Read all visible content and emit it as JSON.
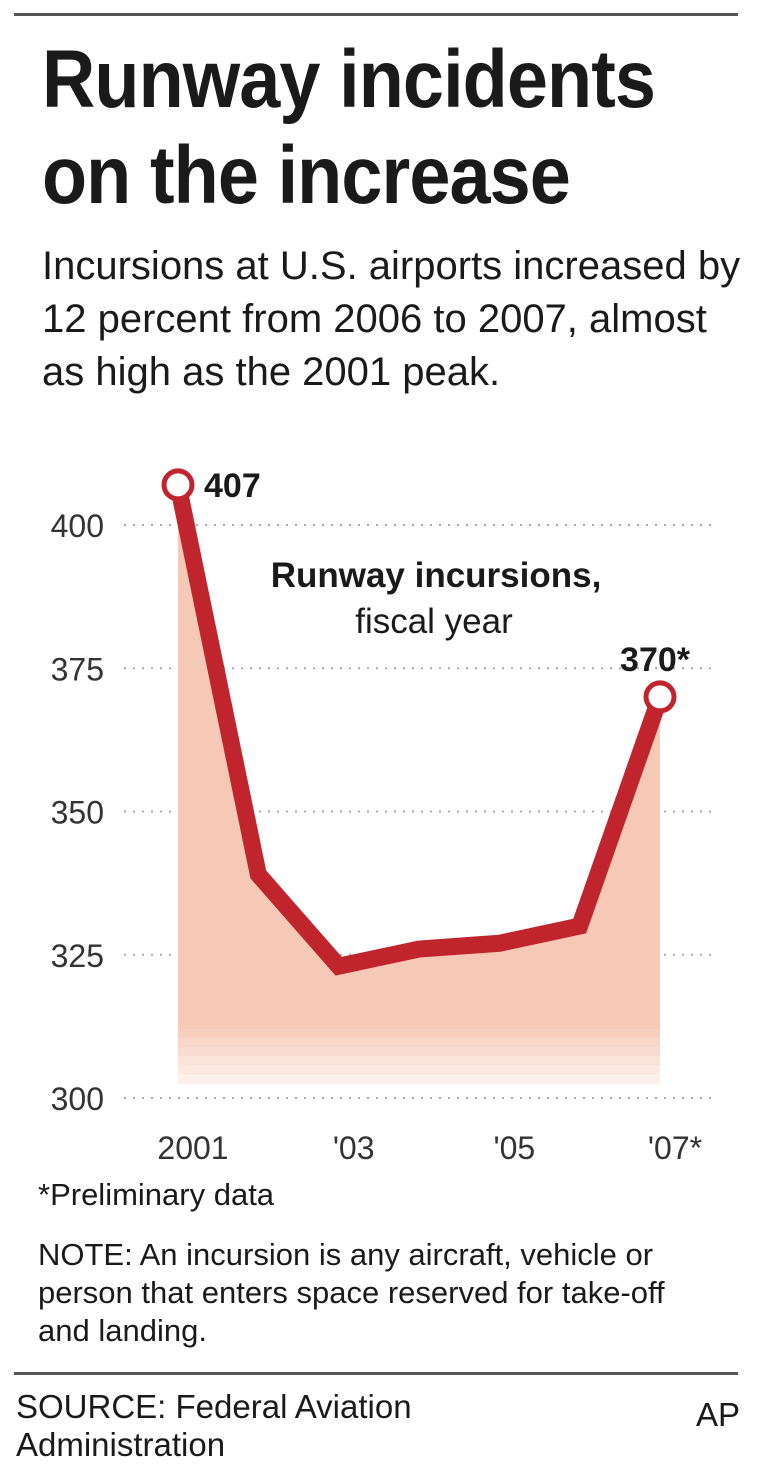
{
  "title": "Runway incidents on the increase",
  "subtitle": "Incursions at U.S. airports increased by 12 percent from 2006 to 2007, almost as high as the 2001 peak.",
  "chart_data": {
    "type": "line",
    "title": "Runway incursions,",
    "subtitle": "fiscal year",
    "x": [
      2001,
      2002,
      2003,
      2004,
      2005,
      2006,
      2007
    ],
    "x_tick_values": [
      2001,
      2003,
      2005,
      2007
    ],
    "x_tick_labels": [
      "2001",
      "'03",
      "'05",
      "'07*"
    ],
    "series": [
      {
        "values": [
          407,
          339,
          323,
          326,
          327,
          330,
          370
        ]
      }
    ],
    "ylim": [
      300,
      410
    ],
    "y_ticks": [
      300,
      325,
      350,
      375,
      400
    ],
    "y_tick_labels": [
      "300",
      "325",
      "350",
      "375",
      "400"
    ],
    "grid": true,
    "data_labels": [
      {
        "x": 2001,
        "text": "407"
      },
      {
        "x": 2007,
        "text": "370*"
      }
    ],
    "colors": {
      "line": "#c0252e",
      "fill": "#f6c9b7",
      "grid": "#aaaaaa"
    }
  },
  "footnote": "*Preliminary data",
  "note": "NOTE: An incursion is any aircraft, vehicle or person that enters space reserved for take-off and landing.",
  "source": "SOURCE: Federal Aviation Administration",
  "credit": "AP"
}
